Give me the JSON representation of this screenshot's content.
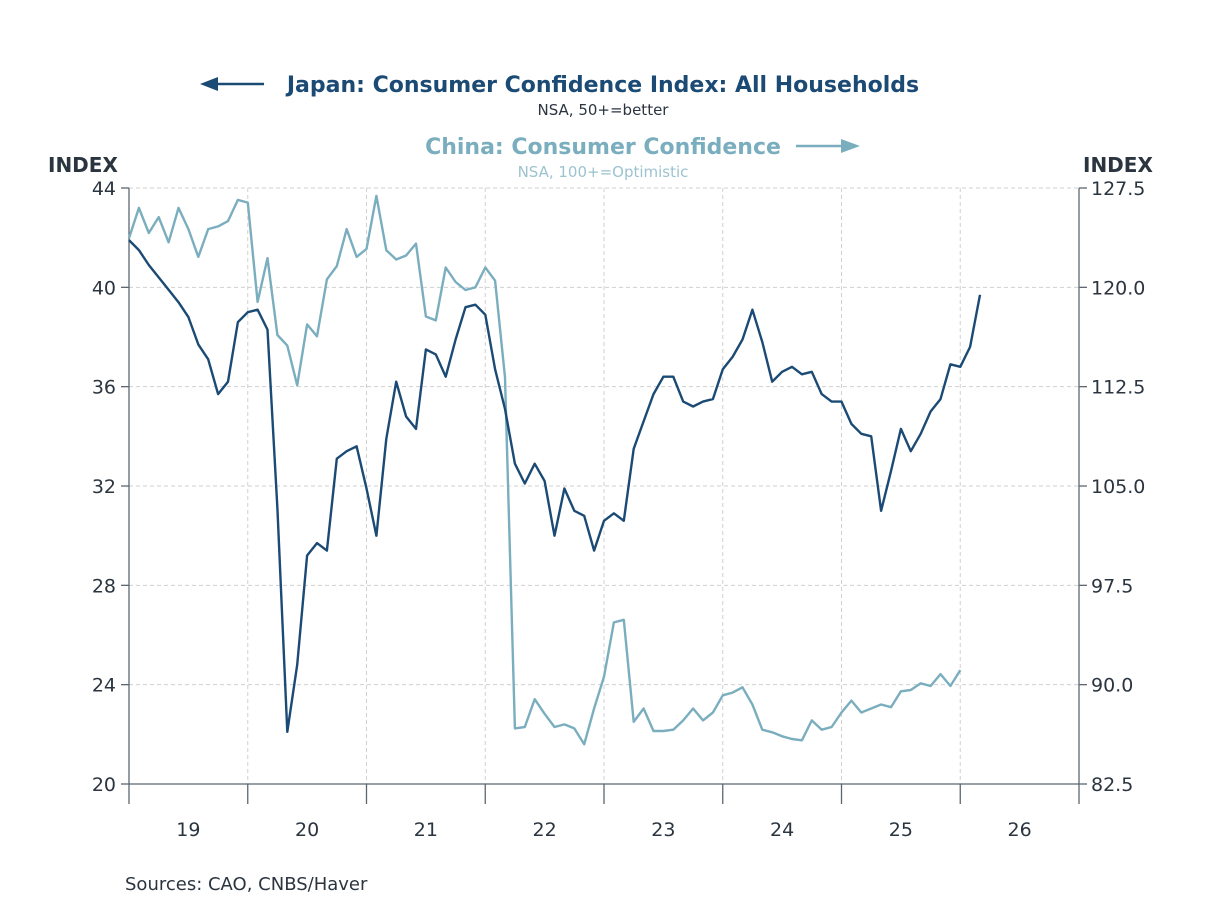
{
  "chart_data": {
    "type": "line",
    "titles": [
      {
        "text": "Japan: Consumer Confidence Index: All Households",
        "subtitle": "NSA, 50+=better",
        "axis": "left",
        "arrow": "left"
      },
      {
        "text": "China: Consumer Confidence",
        "subtitle": "NSA, 100+=Optimistic",
        "axis": "right",
        "arrow": "right"
      }
    ],
    "left_axis": {
      "label": "INDEX",
      "range": [
        20,
        44
      ],
      "ticks": [
        "20",
        "24",
        "28",
        "32",
        "36",
        "40",
        "44"
      ],
      "tick_values": [
        20,
        24,
        28,
        32,
        36,
        40,
        44
      ]
    },
    "right_axis": {
      "label": "INDEX",
      "range": [
        82.5,
        127.5
      ],
      "ticks": [
        "82.5",
        "90.0",
        "97.5",
        "105.0",
        "112.5",
        "120.0",
        "127.5"
      ],
      "tick_values": [
        82.5,
        90.0,
        97.5,
        105.0,
        112.5,
        120.0,
        127.5
      ]
    },
    "x_axis": {
      "start": "2019-01",
      "end": "2026-12",
      "tick_labels": [
        "19",
        "20",
        "21",
        "22",
        "23",
        "24",
        "25",
        "26"
      ],
      "frequency": "monthly"
    },
    "grid": true,
    "colors": {
      "japan": "#1b4a74",
      "china": "#7aaebe"
    },
    "series": [
      {
        "name": "Japan: Consumer Confidence Index: All Households",
        "axis": "left",
        "start": "2019-01",
        "values": [
          41.9,
          41.5,
          40.9,
          40.4,
          39.9,
          39.4,
          38.8,
          37.7,
          37.1,
          35.7,
          36.2,
          38.6,
          39.0,
          39.1,
          38.3,
          31.1,
          22.1,
          24.8,
          29.2,
          29.7,
          29.4,
          33.1,
          33.4,
          33.6,
          31.9,
          30.0,
          33.9,
          36.2,
          34.8,
          34.3,
          37.5,
          37.3,
          36.4,
          37.9,
          39.2,
          39.3,
          38.9,
          36.7,
          35.1,
          32.9,
          32.1,
          32.9,
          32.2,
          30.0,
          31.9,
          31.0,
          30.8,
          29.4,
          30.6,
          30.9,
          30.6,
          33.5,
          34.6,
          35.7,
          36.4,
          36.4,
          35.4,
          35.2,
          35.4,
          35.5,
          36.7,
          37.2,
          37.9,
          39.1,
          37.8,
          36.2,
          36.6,
          36.8,
          36.5,
          36.6,
          35.7,
          35.4,
          35.4,
          34.5,
          34.1,
          34.0,
          31.0,
          32.6,
          34.3,
          33.4,
          34.1,
          35.0,
          35.5,
          36.9,
          36.8,
          37.6,
          39.7
        ]
      },
      {
        "name": "China: Consumer Confidence",
        "axis": "right",
        "start": "2019-01",
        "values": [
          123.7,
          126.0,
          124.1,
          125.3,
          123.4,
          126.0,
          124.4,
          122.3,
          124.4,
          124.6,
          125.0,
          126.6,
          126.4,
          118.9,
          122.2,
          116.4,
          115.6,
          112.6,
          117.2,
          116.3,
          120.6,
          121.6,
          124.4,
          122.3,
          122.9,
          126.9,
          122.8,
          122.1,
          122.4,
          123.3,
          117.8,
          117.5,
          121.5,
          120.4,
          119.8,
          120.0,
          121.5,
          120.5,
          113.2,
          86.7,
          86.8,
          88.9,
          87.8,
          86.8,
          87.0,
          86.7,
          85.5,
          88.2,
          90.6,
          94.7,
          94.9,
          87.2,
          88.2,
          86.5,
          86.5,
          86.6,
          87.3,
          88.2,
          87.3,
          87.9,
          89.2,
          89.4,
          89.8,
          88.5,
          86.6,
          86.4,
          86.1,
          85.9,
          85.8,
          87.3,
          86.6,
          86.8,
          87.9,
          88.8,
          87.9,
          88.2,
          88.5,
          88.3,
          89.5,
          89.6,
          90.1,
          89.9,
          90.8,
          89.9,
          91.1
        ]
      }
    ],
    "source": "Sources:  CAO, CNBS/Haver"
  }
}
